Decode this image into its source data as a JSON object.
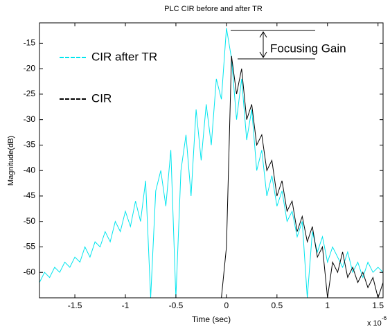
{
  "chart_data": {
    "type": "line",
    "title": "PLC CIR before and after TR",
    "x_label": "Time (sec)",
    "y_label": "Magnitude(dB)",
    "x_multiplier": {
      "base": "x 10",
      "exponent": "-6"
    },
    "annotation": "Focusing Gain",
    "legend": "upper left",
    "xlim": [
      -1.85,
      1.55
    ],
    "ylim": [
      -65,
      -11
    ],
    "xticks": [
      -1.5,
      -1,
      -0.5,
      0,
      0.5,
      1,
      1.5
    ],
    "yticks": [
      -15,
      -20,
      -25,
      -30,
      -35,
      -40,
      -45,
      -50,
      -55,
      -60
    ],
    "x": [
      -1.85,
      -1.8,
      -1.75,
      -1.7,
      -1.65,
      -1.6,
      -1.55,
      -1.5,
      -1.45,
      -1.4,
      -1.35,
      -1.3,
      -1.25,
      -1.2,
      -1.15,
      -1.1,
      -1.05,
      -1,
      -0.95,
      -0.9,
      -0.85,
      -0.8,
      -0.75,
      -0.7,
      -0.65,
      -0.6,
      -0.55,
      -0.5,
      -0.45,
      -0.4,
      -0.35,
      -0.3,
      -0.25,
      -0.2,
      -0.15,
      -0.1,
      -0.05,
      0,
      0.05,
      0.1,
      0.15,
      0.2,
      0.25,
      0.3,
      0.35,
      0.4,
      0.45,
      0.5,
      0.55,
      0.6,
      0.65,
      0.7,
      0.75,
      0.8,
      0.85,
      0.9,
      0.95,
      1,
      1.05,
      1.1,
      1.15,
      1.2,
      1.25,
      1.3,
      1.35,
      1.4,
      1.45,
      1.5,
      1.55
    ],
    "series": [
      {
        "name": "CIR after TR",
        "color": "#00e5ee",
        "values": [
          -62,
          -60,
          -61,
          -59,
          -60,
          -58,
          -59,
          -57,
          -58,
          -55,
          -57,
          -54,
          -55,
          -52,
          -54,
          -50,
          -52,
          -48,
          -51,
          -46,
          -50,
          -42,
          -65,
          -44,
          -40,
          -47,
          -36,
          -65,
          -40,
          -33,
          -45,
          -28,
          -38,
          -27,
          -35,
          -22,
          -26,
          -12,
          -18,
          -30,
          -22,
          -34,
          -28,
          -40,
          -36,
          -45,
          -41,
          -47,
          -44,
          -50,
          -48,
          -53,
          -50,
          -65,
          -52,
          -56,
          -53,
          -58,
          -55,
          -57,
          -59,
          -56,
          -60,
          -58,
          -61,
          -58,
          -60,
          -59,
          -60
        ]
      },
      {
        "name": "CIR",
        "color": "#000000",
        "values": [
          null,
          null,
          null,
          null,
          null,
          null,
          null,
          null,
          null,
          null,
          null,
          null,
          null,
          null,
          null,
          null,
          null,
          null,
          null,
          null,
          null,
          null,
          null,
          null,
          null,
          null,
          null,
          null,
          null,
          null,
          null,
          null,
          null,
          null,
          null,
          null,
          -65,
          -55,
          -17.5,
          -25,
          -20,
          -30,
          -27,
          -35,
          -33,
          -40,
          -38,
          -45,
          -42,
          -48,
          -46,
          -52,
          -49,
          -54,
          -51,
          -57,
          -55,
          -65,
          -58,
          -60,
          -56,
          -61,
          -59,
          -62,
          -60,
          -63,
          -61,
          -65,
          -62
        ]
      }
    ]
  }
}
